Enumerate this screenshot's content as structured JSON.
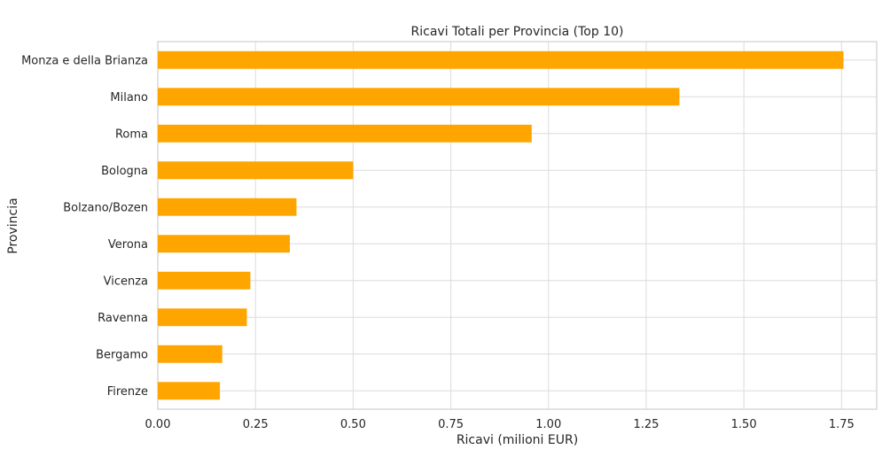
{
  "chart_data": {
    "type": "bar",
    "orientation": "horizontal",
    "title": "Ricavi Totali per Provincia (Top 10)",
    "xlabel": "Ricavi (milioni EUR)",
    "ylabel": "Provincia",
    "categories": [
      "Monza e della Brianza",
      "Milano",
      "Roma",
      "Bologna",
      "Bolzano/Bozen",
      "Verona",
      "Vicenza",
      "Ravenna",
      "Bergamo",
      "Firenze"
    ],
    "values": [
      1.755,
      1.335,
      0.957,
      0.5,
      0.355,
      0.338,
      0.237,
      0.228,
      0.165,
      0.159
    ],
    "xlim": [
      0,
      1.84
    ],
    "xticks": [
      "0.00",
      "0.25",
      "0.50",
      "0.75",
      "1.00",
      "1.25",
      "1.50",
      "1.75"
    ],
    "bar_color": "#FFA500",
    "grid": true,
    "legend": "none"
  }
}
